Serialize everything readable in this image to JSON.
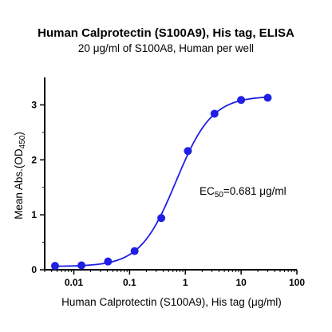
{
  "chart_data": {
    "type": "scatter",
    "title": "Human Calprotectin (S100A9), His tag, ELISA",
    "subtitle": "20 μg/ml of S100A8, Human per well",
    "xlabel": "Human Calprotectin (S100A9), His tag (μg/ml)",
    "ylabel_main": "Mean Abs.(OD",
    "ylabel_sub": "450",
    "ylabel_end": ")",
    "x_scale": "log",
    "xlim": [
      0.003,
      100
    ],
    "ylim": [
      0,
      3.5
    ],
    "x_ticks": [
      {
        "value": 0.01,
        "label": "0.01"
      },
      {
        "value": 0.1,
        "label": "0.1"
      },
      {
        "value": 1,
        "label": "1"
      },
      {
        "value": 10,
        "label": "10"
      },
      {
        "value": 100,
        "label": "100"
      }
    ],
    "y_ticks": [
      {
        "value": 0,
        "label": "0"
      },
      {
        "value": 1,
        "label": "1"
      },
      {
        "value": 2,
        "label": "2"
      },
      {
        "value": 3,
        "label": "3"
      }
    ],
    "series": [
      {
        "x": [
          0.0046,
          0.0137,
          0.041,
          0.123,
          0.37,
          1.11,
          3.33,
          10,
          30
        ],
        "y": [
          0.07,
          0.08,
          0.15,
          0.34,
          0.94,
          2.16,
          2.84,
          3.09,
          3.13
        ],
        "color": "#1f1fe6"
      }
    ],
    "fit_curve": {
      "type": "4PL",
      "bottom": 0.06,
      "top": 3.16,
      "ec50": 0.681,
      "hill": 1.35,
      "color": "#1f1fe6"
    },
    "annotation": {
      "prefix": "EC",
      "sub": "50",
      "suffix": "=0.681 μg/ml"
    },
    "grid": false,
    "legend": "none"
  }
}
